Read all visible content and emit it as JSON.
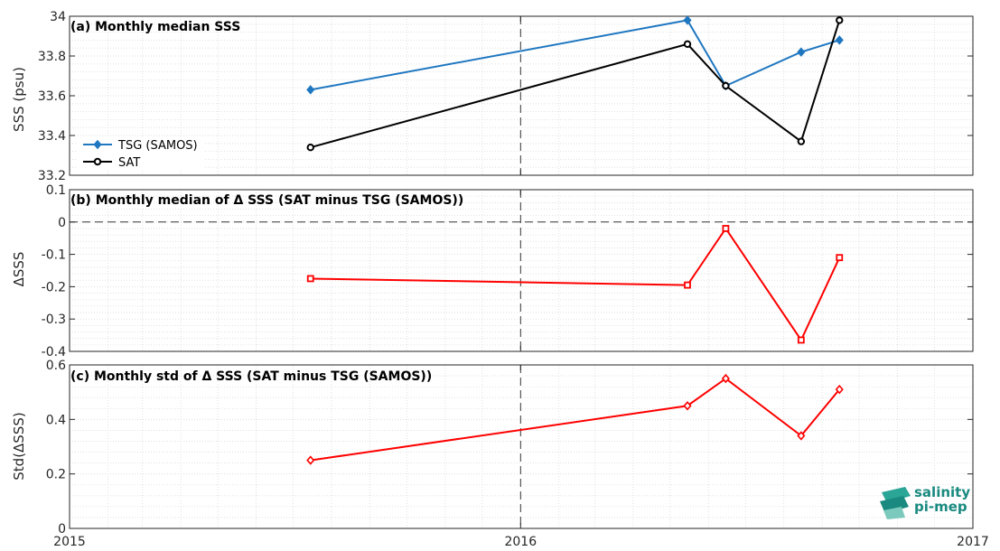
{
  "colors": {
    "tsg": "#1f77c0",
    "sat": "#000000",
    "delta": "#ff0000",
    "logo": "#1a8a80"
  },
  "logo": {
    "line1": "salinity",
    "line2": "pi-mep"
  },
  "chart_data": [
    {
      "type": "line",
      "title": "(a) Monthly median SSS",
      "ylabel": "SSS (psu)",
      "xlim": [
        "2015-01-01",
        "2017-01-01"
      ],
      "ylim": [
        33.2,
        34.0
      ],
      "yticks": [
        "33.2",
        "33.4",
        "33.6",
        "33.8",
        "34"
      ],
      "grid": "minor-dotted",
      "legend_position": "lower-left",
      "series": [
        {
          "name": "TSG (SAMOS)",
          "marker": "diamond",
          "x": [
            "2015-07-15",
            "2016-05-15",
            "2016-06-15",
            "2016-08-15",
            "2016-09-15"
          ],
          "values": [
            33.63,
            33.98,
            33.65,
            33.82,
            33.88
          ]
        },
        {
          "name": "SAT",
          "marker": "circle",
          "x": [
            "2015-07-15",
            "2016-05-15",
            "2016-06-15",
            "2016-08-15",
            "2016-09-15"
          ],
          "values": [
            33.34,
            33.86,
            33.65,
            33.37,
            33.98
          ]
        }
      ]
    },
    {
      "type": "line",
      "title": "(b) Monthly median of Δ SSS (SAT minus TSG (SAMOS))",
      "ylabel": "ΔSSS",
      "xlim": [
        "2015-01-01",
        "2017-01-01"
      ],
      "ylim": [
        -0.4,
        0.1
      ],
      "yticks": [
        "-0.4",
        "-0.3",
        "-0.2",
        "-0.1",
        "0",
        "0.1"
      ],
      "zero_line": true,
      "series": [
        {
          "marker": "square",
          "x": [
            "2015-07-15",
            "2016-05-15",
            "2016-06-15",
            "2016-08-15",
            "2016-09-15"
          ],
          "values": [
            -0.175,
            -0.195,
            -0.02,
            -0.365,
            -0.11
          ]
        }
      ]
    },
    {
      "type": "line",
      "title": "(c) Monthly std of Δ SSS (SAT minus TSG (SAMOS))",
      "ylabel": "Std(ΔSSS)",
      "xlim": [
        "2015-01-01",
        "2017-01-01"
      ],
      "ylim": [
        0,
        0.6
      ],
      "yticks": [
        "0",
        "0.2",
        "0.4",
        "0.6"
      ],
      "xticks": [
        "2015",
        "2016",
        "2017"
      ],
      "series": [
        {
          "marker": "diamond",
          "x": [
            "2015-07-15",
            "2016-05-15",
            "2016-06-15",
            "2016-08-15",
            "2016-09-15"
          ],
          "values": [
            0.25,
            0.45,
            0.55,
            0.34,
            0.51
          ]
        }
      ]
    }
  ]
}
